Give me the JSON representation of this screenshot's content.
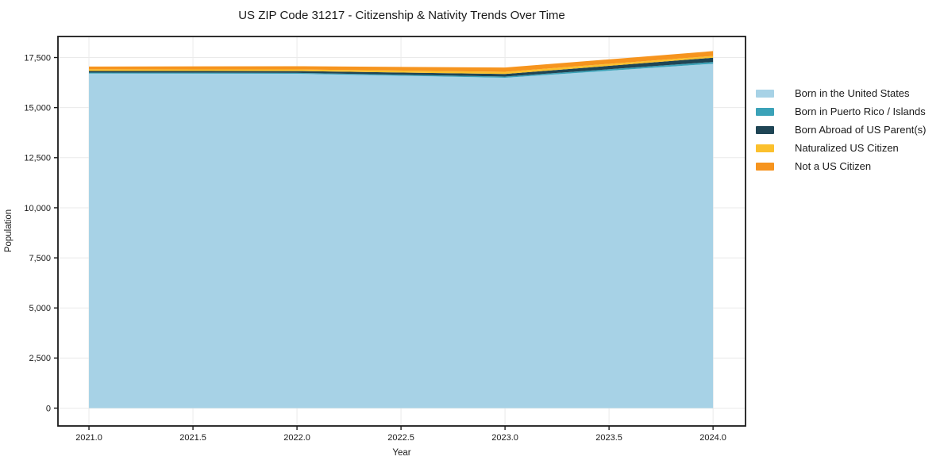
{
  "chart_data": {
    "type": "area",
    "stacked": true,
    "title": "US ZIP Code 31217 - Citizenship & Nativity Trends Over Time",
    "xlabel": "Year",
    "ylabel": "Population",
    "x": [
      2021,
      2022,
      2023,
      2024
    ],
    "series": [
      {
        "name": "Born in the United States",
        "color": "#A7D2E6",
        "values": [
          16700,
          16690,
          16490,
          17190
        ]
      },
      {
        "name": "Born in Puerto Rico / Islands",
        "color": "#3BA2B8",
        "values": [
          50,
          45,
          60,
          90
        ]
      },
      {
        "name": "Born Abroad of US Parent(s)",
        "color": "#1F4555",
        "values": [
          80,
          90,
          130,
          210
        ]
      },
      {
        "name": "Naturalized US Citizen",
        "color": "#FBC02D",
        "values": [
          80,
          80,
          110,
          90
        ]
      },
      {
        "name": "Not a US Citizen",
        "color": "#F6941E",
        "values": [
          140,
          160,
          210,
          240
        ]
      }
    ],
    "xlim": [
      2020.851,
      2024.156
    ],
    "ylim": [
      -891,
      18550
    ],
    "xticks": {
      "values": [
        2021.0,
        2021.5,
        2022.0,
        2022.5,
        2023.0,
        2023.5,
        2024.0
      ],
      "labels": [
        "2021.0",
        "2021.5",
        "2022.0",
        "2022.5",
        "2023.0",
        "2023.5",
        "2024.0"
      ]
    },
    "yticks": {
      "values": [
        0,
        2500,
        5000,
        7500,
        10000,
        12500,
        15000,
        17500
      ],
      "labels": [
        "0",
        "2,500",
        "5,000",
        "7,500",
        "10,000",
        "12,500",
        "15,000",
        "17,500"
      ]
    },
    "grid": true,
    "legend_position": "right",
    "colors": {
      "spine": "#1a1a1a",
      "grid": "#eaeaea",
      "text": "#1a1a1a",
      "background": "#ffffff"
    }
  }
}
